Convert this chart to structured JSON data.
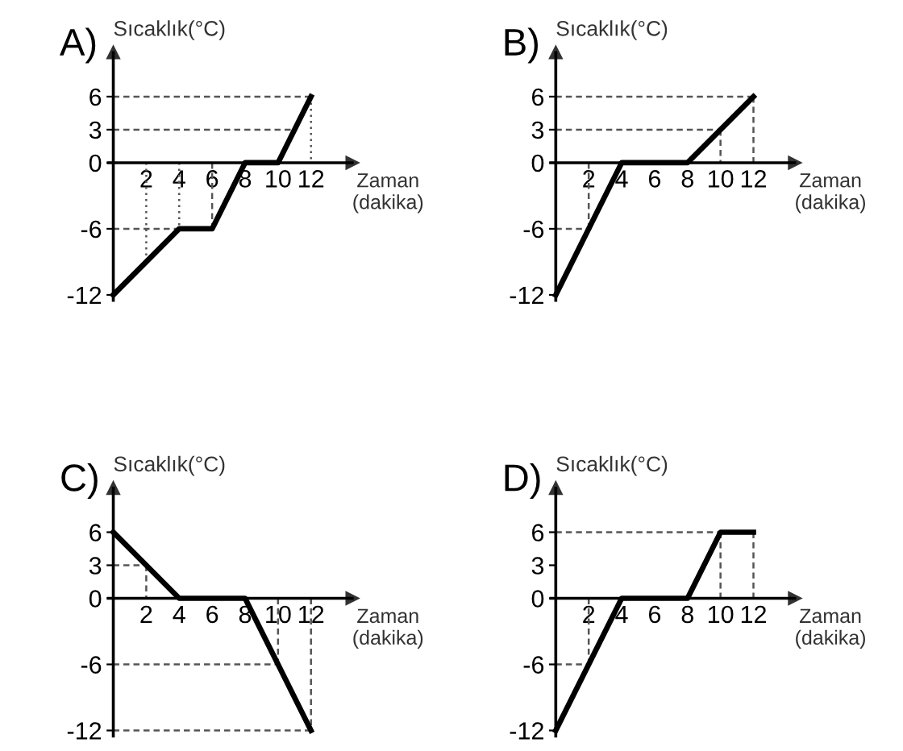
{
  "chart_data": [
    {
      "type": "line",
      "title": "A)",
      "xlabel": "Zaman\n(dakika)",
      "ylabel": "Sıcaklık(°C)",
      "xlim": [
        -0.3,
        14.5
      ],
      "ylim": [
        -12.5,
        10
      ],
      "xticks": [
        2,
        4,
        6,
        8,
        10,
        12
      ],
      "yticks": [
        6,
        3,
        0,
        -6,
        -12
      ],
      "series": [
        {
          "color": "#000000",
          "line_style": "solid",
          "x": [
            0,
            4,
            6,
            8,
            10,
            12
          ],
          "values": [
            -12,
            -6,
            -6,
            0,
            0,
            6
          ]
        },
        {
          "color": "#555555",
          "line_style": "dashed",
          "x": [
            0,
            12
          ],
          "values": [
            6,
            6
          ]
        },
        {
          "color": "#555555",
          "line_style": "dashed",
          "x": [
            0,
            11
          ],
          "values": [
            3,
            3
          ]
        },
        {
          "color": "#555555",
          "line_style": "dashed",
          "x": [
            0,
            4
          ],
          "values": [
            -6,
            -6
          ]
        },
        {
          "color": "#555555",
          "line_style": "dotted",
          "x": [
            2,
            2
          ],
          "values": [
            0,
            -9
          ]
        },
        {
          "color": "#555555",
          "line_style": "dotted",
          "x": [
            4,
            4
          ],
          "values": [
            0,
            -6
          ]
        },
        {
          "color": "#555555",
          "line_style": "dashed",
          "x": [
            6,
            6
          ],
          "values": [
            0,
            -6
          ]
        },
        {
          "color": "#555555",
          "line_style": "dotted",
          "x": [
            12,
            12
          ],
          "values": [
            6,
            0
          ]
        }
      ]
    },
    {
      "type": "line",
      "title": "B)",
      "xlabel": "Zaman\n(dakika)",
      "ylabel": "Sıcaklık(°C)",
      "xlim": [
        -0.3,
        14.5
      ],
      "ylim": [
        -12.5,
        10
      ],
      "xticks": [
        2,
        4,
        6,
        8,
        10,
        12
      ],
      "yticks": [
        6,
        3,
        0,
        -6,
        -12
      ],
      "series": [
        {
          "color": "#000000",
          "line_style": "solid",
          "x": [
            0,
            4,
            8,
            12
          ],
          "values": [
            -12,
            0,
            0,
            6
          ]
        },
        {
          "color": "#555555",
          "line_style": "dashed",
          "x": [
            0,
            12
          ],
          "values": [
            6,
            6
          ]
        },
        {
          "color": "#555555",
          "line_style": "dashed",
          "x": [
            0,
            10
          ],
          "values": [
            3,
            3
          ]
        },
        {
          "color": "#555555",
          "line_style": "dashed",
          "x": [
            0,
            2
          ],
          "values": [
            -6,
            -6
          ]
        },
        {
          "color": "#555555",
          "line_style": "dashed",
          "x": [
            2,
            2
          ],
          "values": [
            0,
            -6
          ]
        },
        {
          "color": "#555555",
          "line_style": "dashed",
          "x": [
            10,
            10
          ],
          "values": [
            3,
            0
          ]
        },
        {
          "color": "#555555",
          "line_style": "dashed",
          "x": [
            12,
            12
          ],
          "values": [
            6,
            0
          ]
        }
      ]
    },
    {
      "type": "line",
      "title": "C)",
      "xlabel": "Zaman\n(dakika)",
      "ylabel": "Sıcaklık(°C)",
      "xlim": [
        -0.3,
        14.5
      ],
      "ylim": [
        -12.5,
        10
      ],
      "xticks": [
        2,
        4,
        6,
        8,
        10,
        12
      ],
      "yticks": [
        6,
        3,
        0,
        -6,
        -12
      ],
      "series": [
        {
          "color": "#000000",
          "line_style": "solid",
          "x": [
            0,
            4,
            8,
            12
          ],
          "values": [
            6,
            0,
            0,
            -12
          ]
        },
        {
          "color": "#555555",
          "line_style": "dashed",
          "x": [
            0,
            2
          ],
          "values": [
            3,
            3
          ]
        },
        {
          "color": "#555555",
          "line_style": "dashed",
          "x": [
            2,
            2
          ],
          "values": [
            3,
            0
          ]
        },
        {
          "color": "#555555",
          "line_style": "dashed",
          "x": [
            0,
            10
          ],
          "values": [
            -6,
            -6
          ]
        },
        {
          "color": "#555555",
          "line_style": "dashed",
          "x": [
            10,
            10
          ],
          "values": [
            0,
            -6
          ]
        },
        {
          "color": "#555555",
          "line_style": "dashed",
          "x": [
            0,
            12
          ],
          "values": [
            -12,
            -12
          ]
        },
        {
          "color": "#555555",
          "line_style": "dashed",
          "x": [
            12,
            12
          ],
          "values": [
            0,
            -12
          ]
        }
      ]
    },
    {
      "type": "line",
      "title": "D)",
      "xlabel": "Zaman\n(dakika)",
      "ylabel": "Sıcaklık(°C)",
      "xlim": [
        -0.3,
        14.5
      ],
      "ylim": [
        -12.5,
        10
      ],
      "xticks": [
        2,
        4,
        6,
        8,
        10,
        12
      ],
      "yticks": [
        6,
        3,
        0,
        -6,
        -12
      ],
      "series": [
        {
          "color": "#000000",
          "line_style": "solid",
          "x": [
            0,
            4,
            8,
            10,
            12
          ],
          "values": [
            -12,
            0,
            0,
            6,
            6
          ]
        },
        {
          "color": "#555555",
          "line_style": "dashed",
          "x": [
            0,
            12
          ],
          "values": [
            6,
            6
          ]
        },
        {
          "color": "#555555",
          "line_style": "dashed",
          "x": [
            10,
            10
          ],
          "values": [
            6,
            0
          ]
        },
        {
          "color": "#555555",
          "line_style": "dashed",
          "x": [
            12,
            12
          ],
          "values": [
            6,
            0
          ]
        },
        {
          "color": "#555555",
          "line_style": "dashed",
          "x": [
            0,
            2
          ],
          "values": [
            -6,
            -6
          ]
        },
        {
          "color": "#555555",
          "line_style": "dashed",
          "x": [
            2,
            2
          ],
          "values": [
            0,
            -6
          ]
        }
      ]
    }
  ]
}
